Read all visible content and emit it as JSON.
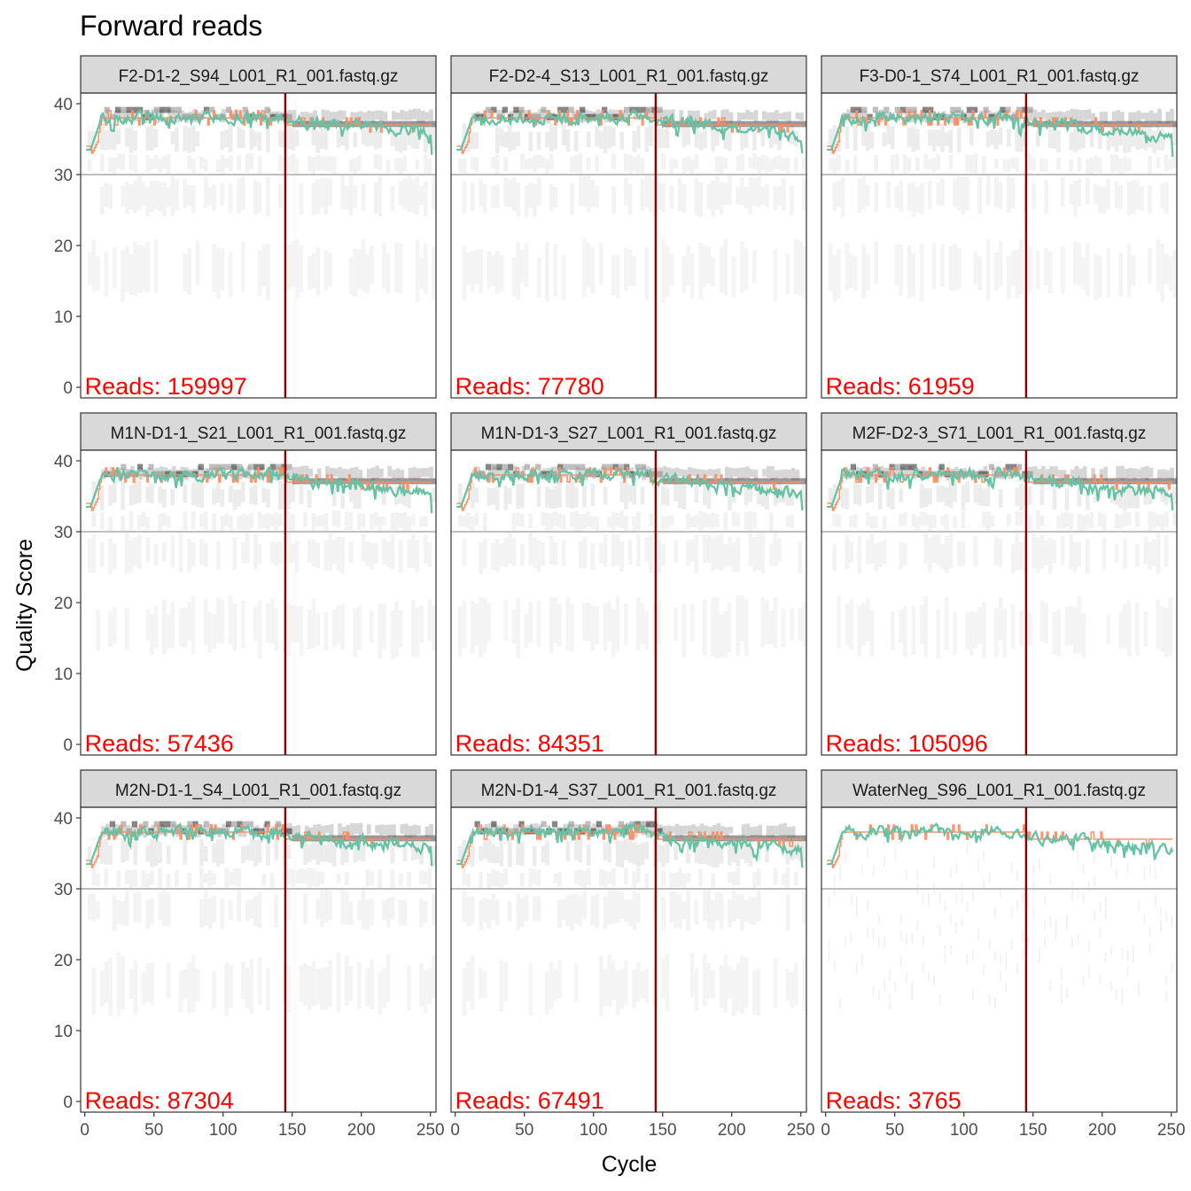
{
  "chart_data": {
    "type": "line",
    "title": "Forward reads",
    "xlabel": "Cycle",
    "ylabel": "Quality Score",
    "xlim": [
      -3,
      254
    ],
    "ylim": [
      -1.5,
      41.5
    ],
    "x_ticks": [
      "0",
      "50",
      "100",
      "150",
      "200",
      "250"
    ],
    "y_ticks": [
      "0",
      "10",
      "20",
      "30",
      "40"
    ],
    "reference_lines": {
      "hline_quality": 30,
      "vline_cycle": 145
    },
    "legend": "none",
    "series_colors": {
      "mean": "#66c2a5",
      "median": "#fc8d62",
      "quartiles": "#fc8d62",
      "heatmap": "grayscale",
      "reference_hline": "#bfbfbf",
      "reference_vline": "#8b0000",
      "reads_label": "#ff0000"
    },
    "panels": [
      {
        "file": "F2-D1-2_S94_L001_R1_001.fastq.gz",
        "reads_label": "Reads:  159997",
        "reads": 159997,
        "end_mean": 32.8,
        "tail_mean": 36.3
      },
      {
        "file": "F2-D2-4_S13_L001_R1_001.fastq.gz",
        "reads_label": "Reads:  77780",
        "reads": 77780,
        "end_mean": 33.0,
        "tail_mean": 35.5
      },
      {
        "file": "F3-D0-1_S74_L001_R1_001.fastq.gz",
        "reads_label": "Reads:  61959",
        "reads": 61959,
        "end_mean": 32.5,
        "tail_mean": 35.3
      },
      {
        "file": "M1N-D1-1_S21_L001_R1_001.fastq.gz",
        "reads_label": "Reads:  57436",
        "reads": 57436,
        "end_mean": 32.6,
        "tail_mean": 35.6
      },
      {
        "file": "M1N-D1-3_S27_L001_R1_001.fastq.gz",
        "reads_label": "Reads:  84351",
        "reads": 84351,
        "end_mean": 33.0,
        "tail_mean": 35.4
      },
      {
        "file": "M2F-D2-3_S71_L001_R1_001.fastq.gz",
        "reads_label": "Reads:  105096",
        "reads": 105096,
        "end_mean": 33.0,
        "tail_mean": 35.2
      },
      {
        "file": "M2N-D1-1_S4_L001_R1_001.fastq.gz",
        "reads_label": "Reads:  87304",
        "reads": 87304,
        "end_mean": 33.2,
        "tail_mean": 35.8
      },
      {
        "file": "M2N-D1-4_S37_L001_R1_001.fastq.gz",
        "reads_label": "Reads:  67491",
        "reads": 67491,
        "end_mean": 33.0,
        "tail_mean": 35.5
      },
      {
        "file": "WaterNeg_S96_L001_R1_001.fastq.gz",
        "reads_label": "Reads:  3765",
        "reads": 3765,
        "end_mean": 35.2,
        "tail_mean": 35.4
      }
    ]
  }
}
